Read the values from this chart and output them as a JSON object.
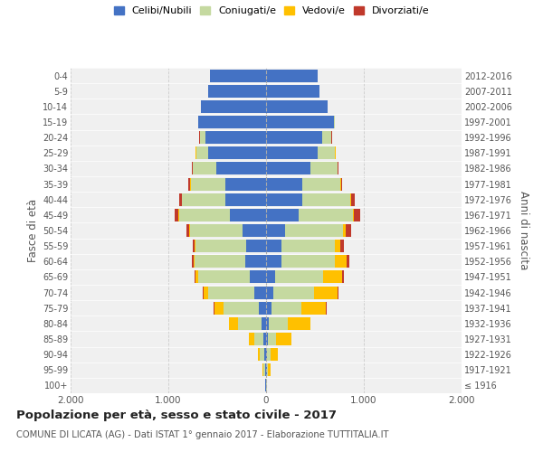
{
  "age_groups": [
    "100+",
    "95-99",
    "90-94",
    "85-89",
    "80-84",
    "75-79",
    "70-74",
    "65-69",
    "60-64",
    "55-59",
    "50-54",
    "45-49",
    "40-44",
    "35-39",
    "30-34",
    "25-29",
    "20-24",
    "15-19",
    "10-14",
    "5-9",
    "0-4"
  ],
  "birth_years": [
    "≤ 1916",
    "1917-1921",
    "1922-1926",
    "1927-1931",
    "1932-1936",
    "1937-1941",
    "1942-1946",
    "1947-1951",
    "1952-1956",
    "1957-1961",
    "1962-1966",
    "1967-1971",
    "1972-1976",
    "1977-1981",
    "1982-1986",
    "1987-1991",
    "1992-1996",
    "1997-2001",
    "2002-2006",
    "2007-2011",
    "2012-2016"
  ],
  "males": {
    "celibi": [
      8,
      12,
      18,
      28,
      45,
      75,
      120,
      170,
      210,
      200,
      240,
      370,
      420,
      420,
      510,
      590,
      620,
      690,
      670,
      590,
      570
    ],
    "coniugati": [
      4,
      18,
      45,
      95,
      240,
      360,
      470,
      520,
      520,
      520,
      540,
      520,
      440,
      350,
      240,
      125,
      55,
      8,
      0,
      0,
      0
    ],
    "vedovi": [
      0,
      4,
      22,
      50,
      95,
      95,
      48,
      28,
      14,
      7,
      4,
      4,
      4,
      4,
      4,
      4,
      4,
      0,
      0,
      0,
      0
    ],
    "divorziati": [
      0,
      0,
      0,
      0,
      4,
      4,
      8,
      12,
      18,
      22,
      32,
      42,
      28,
      18,
      8,
      4,
      4,
      0,
      0,
      0,
      0
    ]
  },
  "females": {
    "nubili": [
      4,
      8,
      12,
      18,
      30,
      55,
      75,
      95,
      155,
      155,
      195,
      330,
      370,
      370,
      450,
      530,
      570,
      690,
      630,
      550,
      530
    ],
    "coniugate": [
      4,
      12,
      35,
      85,
      195,
      305,
      420,
      490,
      550,
      550,
      590,
      560,
      490,
      390,
      280,
      175,
      95,
      18,
      0,
      0,
      0
    ],
    "vedove": [
      4,
      28,
      75,
      155,
      225,
      255,
      235,
      195,
      115,
      55,
      28,
      12,
      8,
      4,
      4,
      4,
      4,
      0,
      0,
      0,
      0
    ],
    "divorziate": [
      0,
      0,
      0,
      0,
      4,
      4,
      8,
      18,
      28,
      38,
      58,
      58,
      38,
      18,
      8,
      4,
      4,
      0,
      0,
      0,
      0
    ]
  },
  "colors": {
    "celibi": "#4472c4",
    "coniugati": "#c5d9a0",
    "vedovi": "#ffc000",
    "divorziati": "#c0392b"
  },
  "title": "Popolazione per età, sesso e stato civile - 2017",
  "subtitle": "COMUNE DI LICATA (AG) - Dati ISTAT 1° gennaio 2017 - Elaborazione TUTTITALIA.IT",
  "ylabel_left": "Fasce di età",
  "ylabel_right": "Anni di nascita",
  "xlim": 2000,
  "legend_labels": [
    "Celibi/Nubili",
    "Coniugati/e",
    "Vedovi/e",
    "Divorziati/e"
  ],
  "bg_color": "#ffffff",
  "grid_color": "#cccccc",
  "ax_bg_color": "#f0f0f0"
}
